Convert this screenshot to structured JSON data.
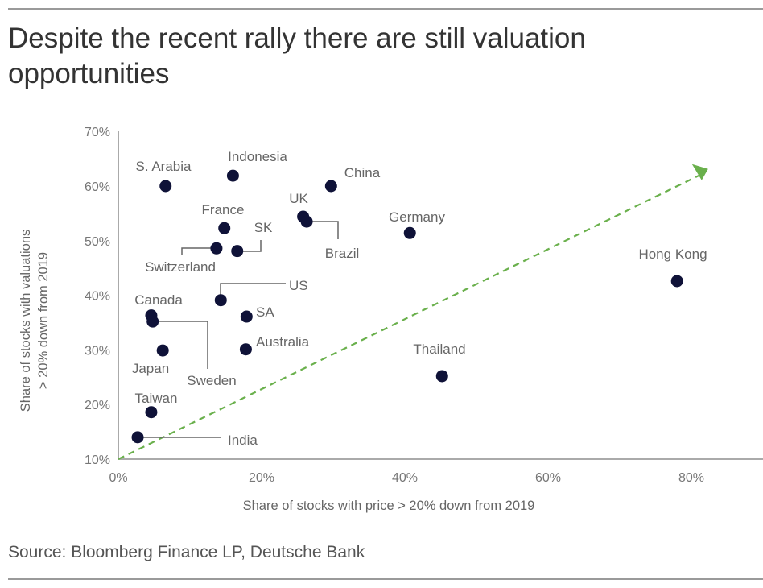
{
  "title": "Despite the recent rally there are still valuation opportunities",
  "source": "Source: Bloomberg Finance LP, Deutsche Bank",
  "chart_data": {
    "type": "scatter",
    "title": "Despite the recent rally there are still valuation opportunities",
    "xlabel": "Share of stocks with price > 20% down from 2019",
    "ylabel_lines": [
      "Share of stocks with valuations",
      "> 20% down from 2019"
    ],
    "xlim": [
      0,
      88
    ],
    "ylim": [
      10,
      70
    ],
    "x_ticks": [
      "0%",
      "20%",
      "40%",
      "60%",
      "80%"
    ],
    "x_tick_values": [
      0,
      20,
      40,
      60,
      80
    ],
    "y_ticks": [
      "10%",
      "20%",
      "30%",
      "40%",
      "50%",
      "60%",
      "70%"
    ],
    "y_tick_values": [
      10,
      20,
      30,
      40,
      50,
      60,
      70
    ],
    "grid": false,
    "point_color": "#0f1238",
    "trend_color": "#6ab04c",
    "trend_line": {
      "style": "dashed",
      "arrow": true,
      "from": [
        0,
        10
      ],
      "to": [
        82,
        62.7
      ]
    },
    "points": [
      {
        "label": "S. Arabia",
        "x": 6.6,
        "y": 60.0
      },
      {
        "label": "Indonesia",
        "x": 16.0,
        "y": 61.9
      },
      {
        "label": "China",
        "x": 29.7,
        "y": 60.0
      },
      {
        "label": "UK",
        "x": 25.8,
        "y": 54.4
      },
      {
        "label": "Brazil",
        "x": 26.3,
        "y": 53.5
      },
      {
        "label": "Germany",
        "x": 40.7,
        "y": 51.4
      },
      {
        "label": "France",
        "x": 14.8,
        "y": 52.3
      },
      {
        "label": "Switzerland",
        "x": 13.7,
        "y": 48.6
      },
      {
        "label": "SK",
        "x": 16.6,
        "y": 48.1
      },
      {
        "label": "US",
        "x": 14.3,
        "y": 39.1
      },
      {
        "label": "SA",
        "x": 17.9,
        "y": 36.1
      },
      {
        "label": "Canada",
        "x": 4.6,
        "y": 36.3
      },
      {
        "label": "Sweden",
        "x": 4.8,
        "y": 35.2
      },
      {
        "label": "Japan",
        "x": 6.2,
        "y": 29.9
      },
      {
        "label": "Australia",
        "x": 17.8,
        "y": 30.1
      },
      {
        "label": "Thailand",
        "x": 45.2,
        "y": 25.2
      },
      {
        "label": "Hong Kong",
        "x": 78.0,
        "y": 42.6
      },
      {
        "label": "Taiwan",
        "x": 4.6,
        "y": 18.6
      },
      {
        "label": "India",
        "x": 2.7,
        "y": 14.0
      }
    ]
  }
}
